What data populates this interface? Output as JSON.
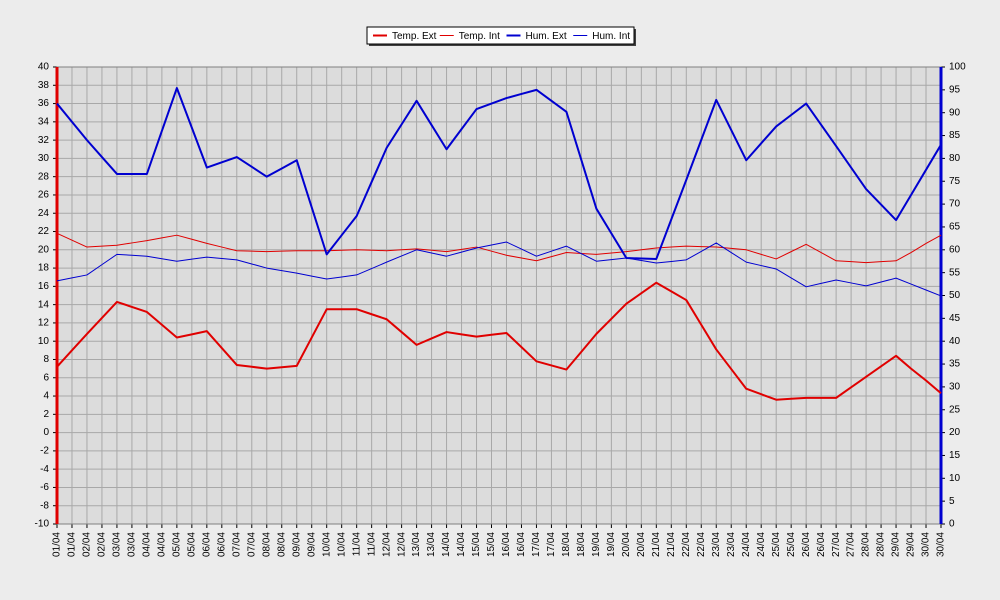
{
  "chart_data": {
    "type": "line",
    "categories": [
      "01/04",
      "01/04",
      "02/04",
      "02/04",
      "03/04",
      "03/04",
      "04/04",
      "04/04",
      "05/04",
      "05/04",
      "06/04",
      "06/04",
      "07/04",
      "07/04",
      "08/04",
      "08/04",
      "09/04",
      "09/04",
      "10/04",
      "10/04",
      "11/04",
      "11/04",
      "12/04",
      "12/04",
      "13/04",
      "13/04",
      "14/04",
      "14/04",
      "15/04",
      "15/04",
      "16/04",
      "16/04",
      "17/04",
      "17/04",
      "18/04",
      "18/04",
      "19/04",
      "19/04",
      "20/04",
      "20/04",
      "21/04",
      "21/04",
      "22/04",
      "22/04",
      "23/04",
      "23/04",
      "24/04",
      "24/04",
      "25/04",
      "25/04",
      "26/04",
      "26/04",
      "27/04",
      "27/04",
      "28/04",
      "28/04",
      "29/04",
      "29/04",
      "30/04",
      "30/04"
    ],
    "series": [
      {
        "name": "Temp. Ext",
        "color": "#e00000",
        "width": 2,
        "axis": "y",
        "values": [
          7.2,
          9.0,
          10.8,
          12.55,
          14.3,
          13.75,
          13.2,
          11.8,
          10.4,
          10.75,
          11.1,
          9.25,
          7.4,
          7.2,
          7.0,
          7.15,
          7.3,
          10.4,
          13.5,
          13.5,
          13.5,
          12.95,
          12.4,
          11.0,
          9.6,
          10.3,
          11.0,
          10.75,
          10.5,
          10.7,
          10.9,
          9.35,
          7.8,
          7.35,
          6.9,
          8.85,
          10.8,
          12.45,
          14.1,
          15.25,
          16.4,
          15.45,
          14.5,
          11.8,
          9.1,
          6.95,
          4.8,
          4.2,
          3.6,
          3.7,
          3.8,
          3.8,
          3.8,
          4.95,
          6.1,
          7.25,
          8.4,
          7.0,
          5.7,
          4.3
        ]
      },
      {
        "name": "Temp. Int",
        "color": "#e00000",
        "width": 1,
        "axis": "y",
        "values": [
          21.8,
          21.05,
          20.3,
          20.4,
          20.5,
          20.75,
          21.0,
          21.3,
          21.6,
          21.15,
          20.7,
          20.3,
          19.9,
          19.85,
          19.8,
          19.85,
          19.9,
          19.9,
          19.9,
          19.95,
          20.0,
          19.95,
          19.9,
          20.0,
          20.1,
          19.95,
          19.8,
          20.05,
          20.3,
          19.85,
          19.4,
          19.1,
          18.8,
          19.25,
          19.7,
          19.6,
          19.5,
          19.65,
          19.8,
          20.0,
          20.2,
          20.3,
          20.4,
          20.35,
          20.3,
          20.15,
          20.0,
          19.5,
          19.0,
          19.8,
          20.6,
          19.7,
          18.8,
          18.7,
          18.6,
          18.7,
          18.8,
          19.7,
          20.7,
          21.6
        ]
      },
      {
        "name": "Hum. Ext",
        "color": "#0000d0",
        "width": 2,
        "axis": "y2",
        "values": [
          92,
          88,
          84,
          80.3,
          76.6,
          76.6,
          76.6,
          86,
          95.4,
          86.7,
          78,
          79.15,
          80.3,
          78.15,
          76,
          77.8,
          79.6,
          69.3,
          59,
          63.2,
          67.4,
          74.85,
          82.3,
          87.45,
          92.6,
          87.3,
          82,
          86.4,
          90.8,
          92,
          93.2,
          94.1,
          95,
          92.6,
          90.2,
          79.6,
          69,
          63.6,
          58.2,
          58.1,
          58,
          66.65,
          75.3,
          84.05,
          92.8,
          86.2,
          79.6,
          83.3,
          87,
          89.5,
          92,
          87.35,
          82.7,
          78,
          73.3,
          69.9,
          66.5,
          72,
          77.5,
          83
        ]
      },
      {
        "name": "Hum. Int",
        "color": "#0000d0",
        "width": 1,
        "axis": "y2",
        "values": [
          53.2,
          53.85,
          54.5,
          56.75,
          59,
          58.8,
          58.6,
          58.05,
          57.5,
          57.95,
          58.4,
          58.1,
          57.8,
          56.9,
          56,
          55.45,
          54.9,
          54.25,
          53.6,
          54.05,
          54.5,
          55.9,
          57.3,
          58.65,
          60,
          59.3,
          58.6,
          59.5,
          60.4,
          61.05,
          61.7,
          60.15,
          58.6,
          59.7,
          60.8,
          59.15,
          57.5,
          57.85,
          58.2,
          57.65,
          57.1,
          57.45,
          57.8,
          59.65,
          61.5,
          59.4,
          57.3,
          56.55,
          55.8,
          53.85,
          51.9,
          52.65,
          53.4,
          52.75,
          52.1,
          52.95,
          53.8,
          52.5,
          51.2,
          49.9
        ]
      }
    ],
    "ylim": [
      -10,
      40
    ],
    "yticks": [
      -10,
      -8,
      -6,
      -4,
      -2,
      0,
      2,
      4,
      6,
      8,
      10,
      12,
      14,
      16,
      18,
      20,
      22,
      24,
      26,
      28,
      30,
      32,
      34,
      36,
      38,
      40
    ],
    "y2lim": [
      0,
      100
    ],
    "y2ticks": [
      0,
      5,
      10,
      15,
      20,
      25,
      30,
      35,
      40,
      45,
      50,
      55,
      60,
      65,
      70,
      75,
      80,
      85,
      90,
      95,
      100
    ],
    "grid": true,
    "legend": "top"
  }
}
